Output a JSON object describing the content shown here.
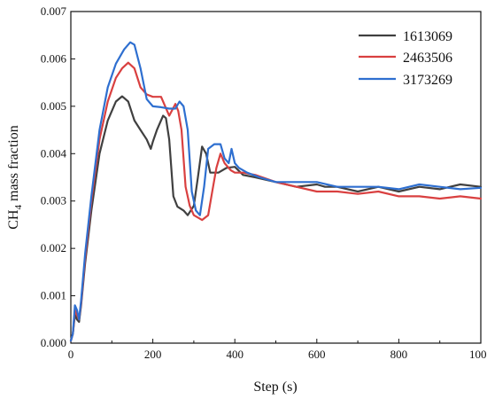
{
  "chart_data": {
    "type": "line",
    "xlabel": "Step (s)",
    "ylabel_main": "CH",
    "ylabel_sub": "4",
    "ylabel_rest": " mass fraction",
    "xlim": [
      0,
      1000
    ],
    "ylim": [
      0,
      0.007
    ],
    "x_ticks": [
      0,
      200,
      400,
      600,
      800,
      1000
    ],
    "x_tick_labels": [
      "0",
      "200",
      "400",
      "600",
      "800",
      "1000"
    ],
    "y_ticks": [
      0,
      0.001,
      0.002,
      0.003,
      0.004,
      0.005,
      0.006,
      0.007
    ],
    "y_tick_labels": [
      "0.000",
      "0.001",
      "0.002",
      "0.003",
      "0.004",
      "0.005",
      "0.006",
      "0.007"
    ],
    "grid": false,
    "legend_position": "top-right",
    "series": [
      {
        "name": "1613069",
        "color": "#404040",
        "x": [
          0,
          5,
          10,
          15,
          20,
          25,
          35,
          50,
          70,
          90,
          110,
          125,
          140,
          155,
          170,
          185,
          195,
          200,
          210,
          225,
          232,
          240,
          250,
          260,
          275,
          285,
          300,
          310,
          320,
          330,
          340,
          360,
          380,
          400,
          420,
          450,
          500,
          550,
          600,
          620,
          650,
          700,
          750,
          800,
          850,
          900,
          950,
          1000
        ],
        "y": [
          5e-05,
          0.0002,
          0.0006,
          0.0005,
          0.00045,
          0.0008,
          0.0017,
          0.0028,
          0.004,
          0.0047,
          0.0051,
          0.00521,
          0.0051,
          0.0047,
          0.0045,
          0.0043,
          0.0041,
          0.00425,
          0.0045,
          0.0048,
          0.00475,
          0.0043,
          0.0031,
          0.00288,
          0.0028,
          0.0027,
          0.0029,
          0.0035,
          0.00415,
          0.004,
          0.0036,
          0.0036,
          0.0037,
          0.00372,
          0.00355,
          0.0035,
          0.0034,
          0.0033,
          0.00335,
          0.0033,
          0.0033,
          0.0032,
          0.0033,
          0.0032,
          0.0033,
          0.00325,
          0.00335,
          0.0033
        ]
      },
      {
        "name": "2463506",
        "color": "#d94040",
        "x": [
          0,
          5,
          10,
          15,
          20,
          25,
          35,
          50,
          70,
          90,
          110,
          125,
          140,
          155,
          170,
          185,
          200,
          220,
          240,
          255,
          262,
          270,
          280,
          290,
          300,
          320,
          335,
          345,
          355,
          365,
          375,
          390,
          400,
          420,
          450,
          500,
          550,
          600,
          650,
          700,
          750,
          800,
          850,
          900,
          950,
          1000
        ],
        "y": [
          5e-05,
          0.0002,
          0.0007,
          0.0006,
          0.0005,
          0.00085,
          0.0018,
          0.003,
          0.0043,
          0.0051,
          0.0056,
          0.0058,
          0.00592,
          0.0058,
          0.0054,
          0.00525,
          0.0052,
          0.0052,
          0.0048,
          0.00505,
          0.0049,
          0.0045,
          0.0033,
          0.0029,
          0.0027,
          0.0026,
          0.0027,
          0.0032,
          0.0037,
          0.004,
          0.0038,
          0.00365,
          0.0036,
          0.0036,
          0.00355,
          0.0034,
          0.0033,
          0.0032,
          0.0032,
          0.00315,
          0.0032,
          0.0031,
          0.0031,
          0.00305,
          0.0031,
          0.00305
        ]
      },
      {
        "name": "3173269",
        "color": "#2e6fd0",
        "x": [
          0,
          5,
          10,
          15,
          20,
          25,
          35,
          50,
          70,
          90,
          110,
          130,
          145,
          155,
          170,
          185,
          200,
          220,
          240,
          255,
          265,
          275,
          285,
          295,
          305,
          315,
          325,
          335,
          350,
          365,
          375,
          385,
          392,
          400,
          410,
          430,
          460,
          500,
          550,
          600,
          650,
          700,
          750,
          800,
          850,
          900,
          950,
          1000
        ],
        "y": [
          5e-05,
          0.0002,
          0.0008,
          0.0007,
          0.0005,
          0.0009,
          0.0019,
          0.0031,
          0.0045,
          0.0054,
          0.0059,
          0.0062,
          0.00635,
          0.0063,
          0.0058,
          0.00515,
          0.005,
          0.00498,
          0.00495,
          0.00495,
          0.0051,
          0.005,
          0.0045,
          0.0032,
          0.0028,
          0.0027,
          0.0033,
          0.0041,
          0.0042,
          0.0042,
          0.0039,
          0.0038,
          0.0041,
          0.0038,
          0.0037,
          0.0036,
          0.0035,
          0.0034,
          0.0034,
          0.0034,
          0.0033,
          0.0033,
          0.0033,
          0.00325,
          0.00335,
          0.0033,
          0.00325,
          0.00328
        ]
      }
    ]
  }
}
